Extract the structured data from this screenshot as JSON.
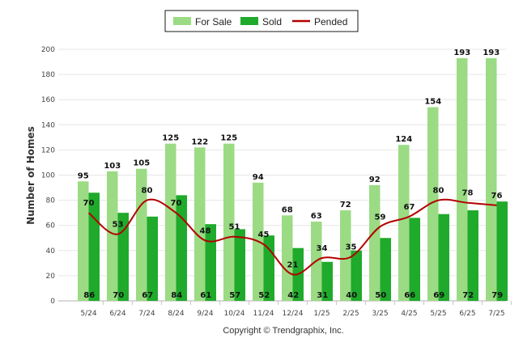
{
  "chart_data": {
    "type": "bar",
    "categories": [
      "5/24",
      "6/24",
      "7/24",
      "8/24",
      "9/24",
      "10/24",
      "11/24",
      "12/24",
      "1/25",
      "2/25",
      "3/25",
      "4/25",
      "5/25",
      "6/25",
      "7/25"
    ],
    "series": [
      {
        "name": "For Sale",
        "kind": "bar",
        "color": "#9bdb84",
        "values": [
          95,
          103,
          105,
          125,
          122,
          125,
          94,
          68,
          63,
          72,
          92,
          124,
          154,
          193,
          193
        ]
      },
      {
        "name": "Sold",
        "kind": "bar",
        "color": "#1faa2b",
        "values": [
          86,
          70,
          67,
          84,
          61,
          57,
          52,
          42,
          31,
          40,
          50,
          66,
          69,
          72,
          79
        ]
      },
      {
        "name": "Pended",
        "kind": "line",
        "color": "#b30000",
        "values": [
          70,
          53,
          80,
          70,
          48,
          51,
          45,
          21,
          34,
          35,
          59,
          67,
          80,
          78,
          76
        ]
      }
    ],
    "xlabel": "",
    "ylabel": "Number of Homes",
    "ylim": [
      0,
      200
    ],
    "yticks": [
      0,
      20,
      40,
      60,
      80,
      100,
      120,
      140,
      160,
      180,
      200
    ],
    "grid": true,
    "legend_position": "top-center"
  },
  "footer": {
    "copyright": "Copyright © Trendgraphix, Inc."
  }
}
